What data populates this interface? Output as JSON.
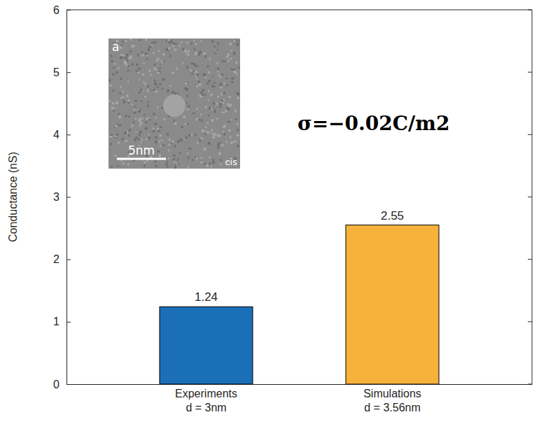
{
  "chart_data": {
    "type": "bar",
    "y_label": "Conductance (nS)",
    "categories": [
      "Experiments\nd = 3nm",
      "Simulations\nd = 3.56nm"
    ],
    "values": [
      1.24,
      2.55
    ],
    "colors": [
      "#1a6fb8",
      "#f6b23a"
    ],
    "ylim": [
      0,
      6
    ],
    "yticks": [
      0,
      1,
      2,
      3,
      4,
      5,
      6
    ],
    "data_labels": true,
    "annotations": [
      "σ=−0.02C/m2",
      "a",
      "5nm",
      "cis"
    ]
  }
}
